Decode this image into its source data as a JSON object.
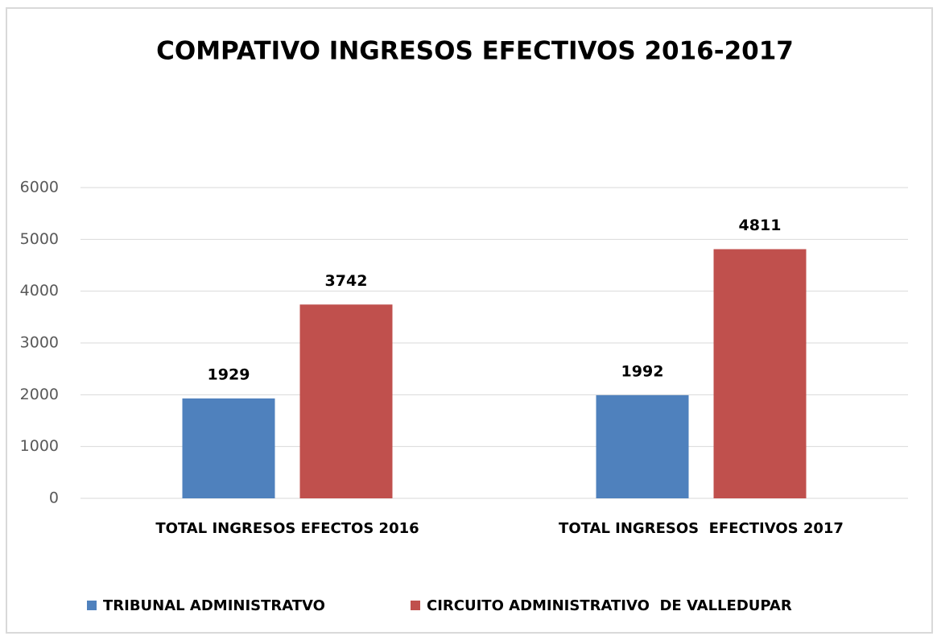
{
  "chart_data": {
    "type": "bar",
    "title": "COMPATIVO INGRESOS EFECTIVOS 2016-2017",
    "categories": [
      "TOTAL INGRESOS EFECTOS 2016",
      "TOTAL INGRESOS  EFECTIVOS 2017"
    ],
    "series": [
      {
        "name": "TRIBUNAL ADMINISTRATVO",
        "color": "#4f81bd",
        "values": [
          1929,
          1992
        ]
      },
      {
        "name": "CIRCUITO ADMINISTRATIVO  DE VALLEDUPAR",
        "color": "#c0504d",
        "values": [
          3742,
          4811
        ]
      }
    ],
    "ylim": [
      0,
      6000
    ],
    "yticks": [
      0,
      1000,
      2000,
      3000,
      4000,
      5000,
      6000
    ],
    "grid": true,
    "legend": "bottom"
  }
}
